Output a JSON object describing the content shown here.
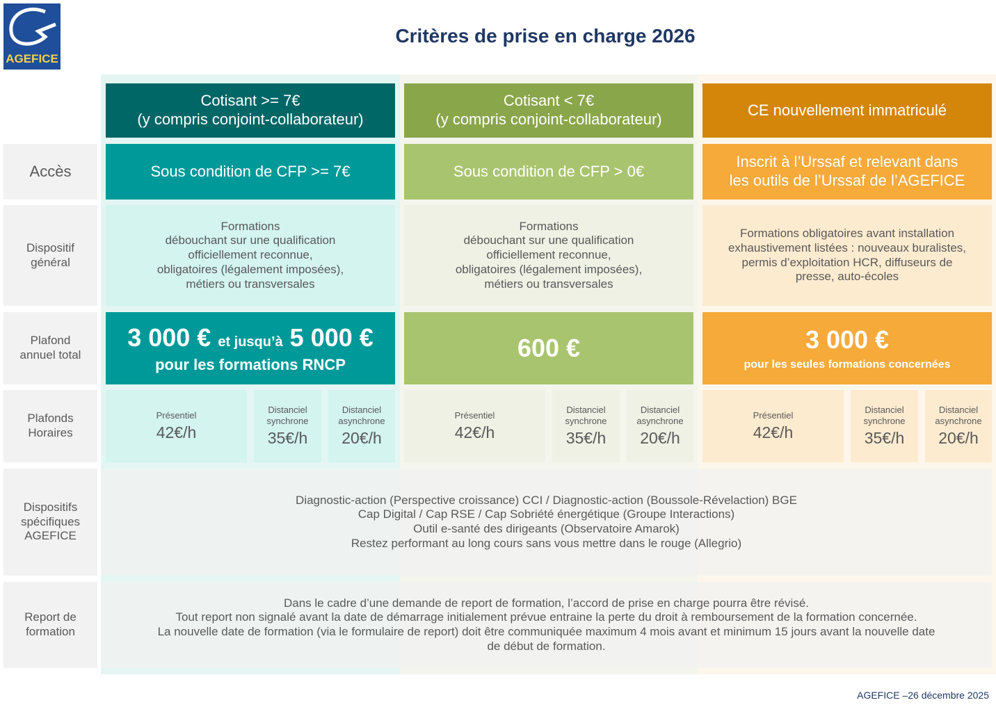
{
  "logo": "AGEFICE",
  "title": "Critères de prise en charge 2026",
  "row_labels": {
    "acces": [
      "Accès"
    ],
    "dispositif": [
      "Dispositif",
      "général"
    ],
    "plafond": [
      "Plafond",
      "annuel total"
    ],
    "horaires": [
      "Plafonds",
      "Horaires"
    ],
    "specifiques": [
      "Dispositifs",
      "spécifiques",
      "AGEFICE"
    ],
    "report": [
      "Report de",
      "formation"
    ]
  },
  "columns": [
    {
      "header": [
        "Cotisant >= 7€",
        "(y compris conjoint-collaborateur)"
      ],
      "acces": [
        "Sous condition de CFP >= 7€"
      ],
      "dispositif": [
        "Formations",
        "débouchant sur une qualification",
        "officiellement reconnue,",
        "obligatoires (légalement imposées),",
        "métiers ou transversales"
      ],
      "plafond": {
        "amount": "3 000 €",
        "connector": "et jusqu’à",
        "amount_max": "5 000 €",
        "note": "pour les formations RNCP"
      },
      "horaires": [
        {
          "label": [
            "Présentiel"
          ],
          "rate": "42€/h"
        },
        {
          "label": [
            "Distanciel",
            "synchrone"
          ],
          "rate": "35€/h"
        },
        {
          "label": [
            "Distanciel",
            "asynchrone"
          ],
          "rate": "20€/h"
        }
      ]
    },
    {
      "header": [
        "Cotisant < 7€",
        "(y compris conjoint-collaborateur)"
      ],
      "acces": [
        "Sous condition de CFP > 0€"
      ],
      "dispositif": [
        "Formations",
        "débouchant sur une qualification",
        "officiellement reconnue,",
        "obligatoires (légalement imposées),",
        "métiers ou transversales"
      ],
      "plafond": {
        "amount": "600 €"
      },
      "horaires": [
        {
          "label": [
            "Présentiel"
          ],
          "rate": "42€/h"
        },
        {
          "label": [
            "Distanciel",
            "synchrone"
          ],
          "rate": "35€/h"
        },
        {
          "label": [
            "Distanciel",
            "asynchrone"
          ],
          "rate": "20€/h"
        }
      ]
    },
    {
      "header": [
        "CE nouvellement immatriculé"
      ],
      "acces": [
        "Inscrit à l’Urssaf et relevant dans",
        "les outils de l’Urssaf de l’AGEFICE"
      ],
      "dispositif": [
        "Formations obligatoires avant installation",
        "exhaustivement listées : nouveaux buralistes,",
        "permis d’exploitation HCR, diffuseurs de",
        "presse, auto-écoles"
      ],
      "plafond": {
        "amount": "3 000 €",
        "note": "pour les seules formations concernées"
      },
      "horaires": [
        {
          "label": [
            "Présentiel"
          ],
          "rate": "42€/h"
        },
        {
          "label": [
            "Distanciel",
            "synchrone"
          ],
          "rate": "35€/h"
        },
        {
          "label": [
            "Distanciel",
            "asynchrone"
          ],
          "rate": "20€/h"
        }
      ]
    }
  ],
  "specifiques": [
    "Diagnostic-action (Perspective croissance) CCI / Diagnostic-action (Boussole-Révelaction) BGE",
    "Cap Digital / Cap RSE / Cap Sobriété énergétique (Groupe Interactions)",
    "Outil e-santé des dirigeants (Observatoire Amarok)",
    "Restez performant au long cours sans vous mettre dans le rouge (Allegrio)"
  ],
  "report": [
    "Dans le cadre d’une demande de report de formation, l’accord de prise en charge pourra être révisé.",
    "Tout report non signalé avant la date de démarrage initialement prévue entraine la perte du droit à remboursement de la formation concernée.",
    "La nouvelle date de formation (via le formulaire de report) doit être communiquée maximum 4 mois avant et minimum 15 jours avant la nouvelle date",
    "de début de formation."
  ],
  "footer": "AGEFICE –26 décembre 2025"
}
